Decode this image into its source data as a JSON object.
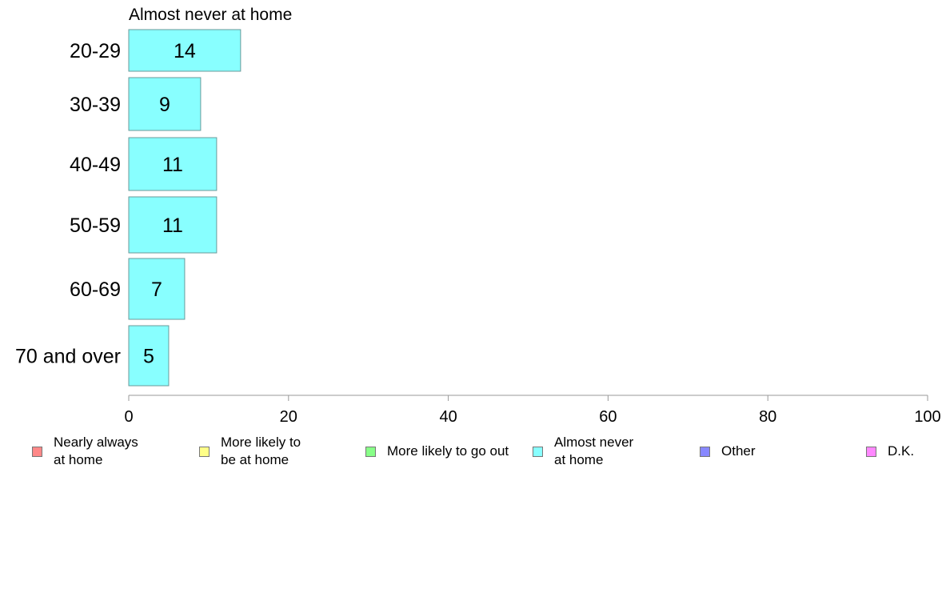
{
  "chart_data": {
    "type": "bar",
    "orientation": "horizontal",
    "title": "Almost never at home",
    "categories": [
      "20-29",
      "30-39",
      "40-49",
      "50-59",
      "60-69",
      "70 and over"
    ],
    "values": [
      14,
      9,
      11,
      11,
      7,
      5
    ],
    "bar_color": "#88ffff",
    "xlim": [
      0,
      100
    ],
    "xticks": [
      0,
      20,
      40,
      60,
      80,
      100
    ],
    "grid": false,
    "legend_position": "bottom",
    "legend": [
      {
        "label": "Nearly always\nat home",
        "color": "#ff8888"
      },
      {
        "label": "More likely to\nbe at home",
        "color": "#ffff88"
      },
      {
        "label": "More likely to go out",
        "color": "#88ff88"
      },
      {
        "label": "Almost never\nat home",
        "color": "#88ffff"
      },
      {
        "label": "Other",
        "color": "#8888ff"
      },
      {
        "label": "D.K.",
        "color": "#ff88ff"
      }
    ]
  }
}
